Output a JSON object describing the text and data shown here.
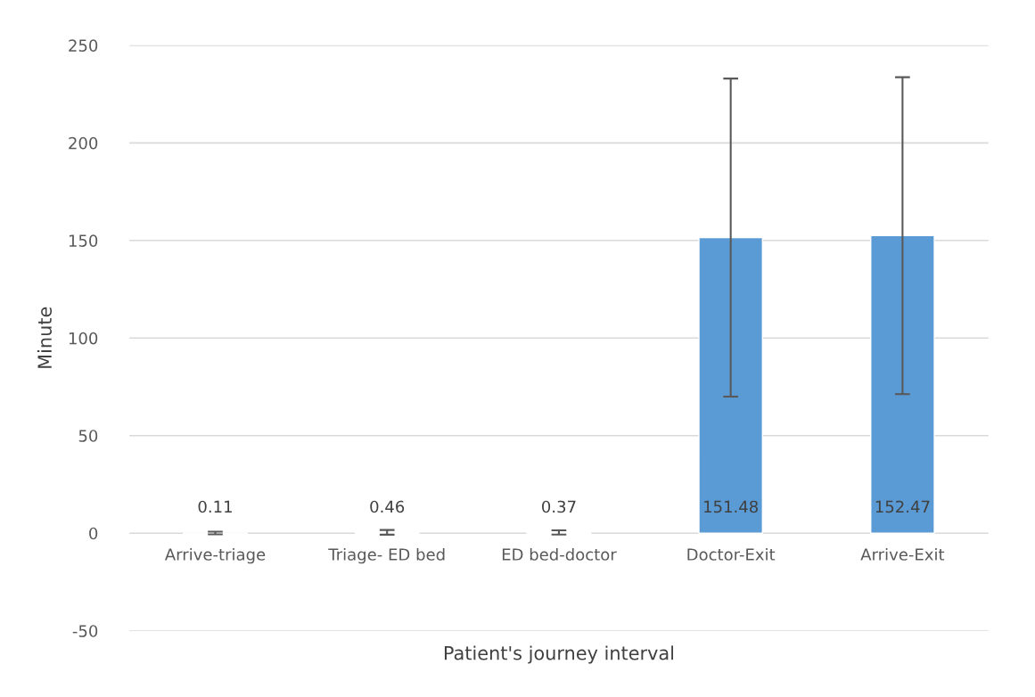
{
  "chart_data": {
    "type": "bar",
    "xlabel": "Patient's journey interval",
    "ylabel": "Minute",
    "categories": [
      "Arrive-triage",
      "Triage- ED bed",
      "ED bed-doctor",
      "Doctor-Exit",
      "Arrive-Exit"
    ],
    "values": [
      0.11,
      0.46,
      0.37,
      151.48,
      152.47
    ],
    "errors": [
      0.7,
      1.2,
      1.1,
      81.5,
      81.2
    ],
    "color": "#5b9bd5",
    "ylim": [
      -50,
      250
    ],
    "yticks": [
      -50,
      0,
      50,
      100,
      150,
      200,
      250
    ],
    "grid": "y",
    "data_labels": true
  }
}
